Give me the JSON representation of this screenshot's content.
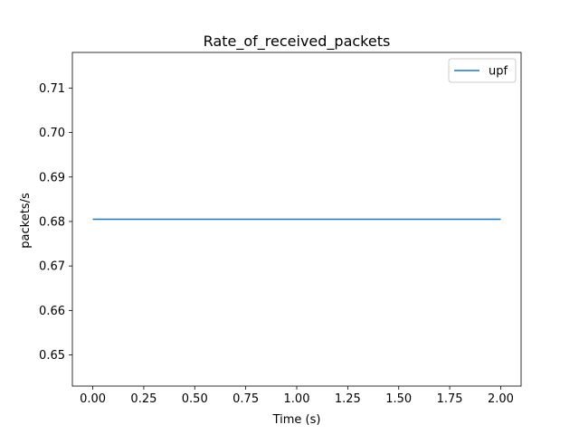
{
  "chart_data": {
    "type": "line",
    "title": "Rate_of_received_packets",
    "xlabel": "Time (s)",
    "ylabel": "packets/s",
    "xlim": [
      -0.1,
      2.1
    ],
    "ylim": [
      0.643,
      0.718
    ],
    "x_ticks": [
      0.0,
      0.25,
      0.5,
      0.75,
      1.0,
      1.25,
      1.5,
      1.75,
      2.0
    ],
    "x_tick_labels": [
      "0.00",
      "0.25",
      "0.50",
      "0.75",
      "1.00",
      "1.25",
      "1.50",
      "1.75",
      "2.00"
    ],
    "y_ticks": [
      0.65,
      0.66,
      0.67,
      0.68,
      0.69,
      0.7,
      0.71
    ],
    "y_tick_labels": [
      "0.65",
      "0.66",
      "0.67",
      "0.68",
      "0.69",
      "0.70",
      "0.71"
    ],
    "grid": false,
    "legend_position": "top-right",
    "series": [
      {
        "name": "upf",
        "color": "#1f77b4",
        "x": [
          0.0,
          2.0
        ],
        "y": [
          0.6805,
          0.6805
        ]
      }
    ]
  }
}
